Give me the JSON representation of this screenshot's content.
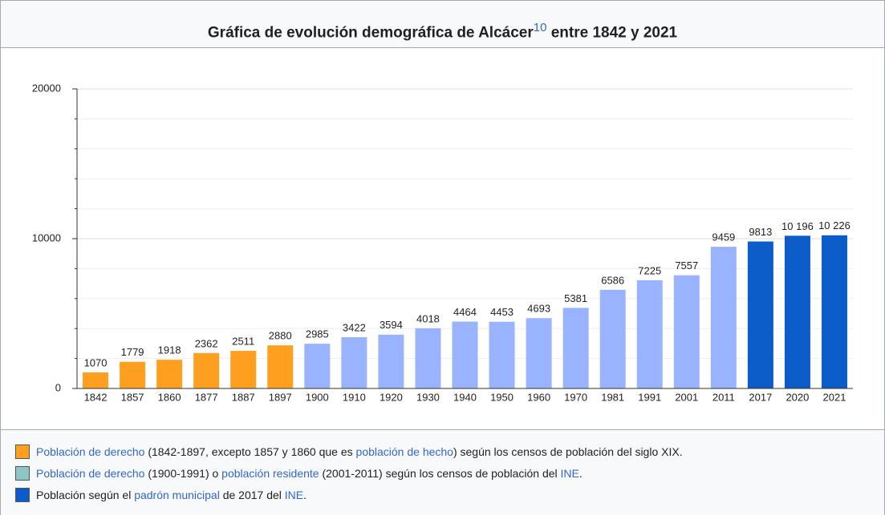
{
  "chart_data": {
    "type": "bar",
    "title": [
      {
        "text": "Gráfica de evolución demográfica de Alcácer"
      },
      {
        "text": "10",
        "link": true,
        "sup": true
      },
      {
        "text": " entre 1842 y 2021"
      }
    ],
    "categories": [
      "1842",
      "1857",
      "1860",
      "1877",
      "1887",
      "1897",
      "1900",
      "1910",
      "1920",
      "1930",
      "1940",
      "1950",
      "1960",
      "1970",
      "1981",
      "1991",
      "2001",
      "2011",
      "2017",
      "2020",
      "2021"
    ],
    "values": [
      1070,
      1779,
      1918,
      2362,
      2511,
      2880,
      2985,
      3422,
      3594,
      4018,
      4464,
      4453,
      4693,
      5381,
      6586,
      7225,
      7557,
      9459,
      9813,
      10196,
      10226
    ],
    "value_labels": [
      "1070",
      "1779",
      "1918",
      "2362",
      "2511",
      "2880",
      "2985",
      "3422",
      "3594",
      "4018",
      "4464",
      "4453",
      "4693",
      "5381",
      "6586",
      "7225",
      "7557",
      "9459",
      "9813",
      "10 196",
      "10 226"
    ],
    "colors": [
      "#ff9f1f",
      "#ff9f1f",
      "#ff9f1f",
      "#ff9f1f",
      "#ff9f1f",
      "#ff9f1f",
      "#99b3ff",
      "#99b3ff",
      "#99b3ff",
      "#99b3ff",
      "#99b3ff",
      "#99b3ff",
      "#99b3ff",
      "#99b3ff",
      "#99b3ff",
      "#99b3ff",
      "#99b3ff",
      "#99b3ff",
      "#0b5cc9",
      "#0b5cc9",
      "#0b5cc9"
    ],
    "ylim": [
      0,
      20000
    ],
    "yticks": [
      0,
      10000,
      20000
    ],
    "minor_yticks": [
      2000,
      4000,
      6000,
      8000,
      12000,
      14000,
      16000,
      18000
    ],
    "grid": true,
    "legend": [
      {
        "color": "#ff9f1f",
        "parts": [
          {
            "text": "Población de derecho",
            "link": true
          },
          {
            "text": " (1842-1897, excepto 1857 y 1860 que es "
          },
          {
            "text": "población de hecho",
            "link": true
          },
          {
            "text": ") según los censos de población del siglo XIX."
          }
        ]
      },
      {
        "color": "#8ec6c8",
        "parts": [
          {
            "text": "Población de derecho",
            "link": true
          },
          {
            "text": " (1900-1991) o "
          },
          {
            "text": "población residente",
            "link": true
          },
          {
            "text": " (2001-2011) según los censos de población del "
          },
          {
            "text": "INE",
            "link": true
          },
          {
            "text": "."
          }
        ]
      },
      {
        "color": "#0b5cc9",
        "parts": [
          {
            "text": "Población según el "
          },
          {
            "text": "padrón municipal",
            "link": true
          },
          {
            "text": " de 2017 del "
          },
          {
            "text": "INE",
            "link": true
          },
          {
            "text": "."
          }
        ]
      }
    ]
  }
}
